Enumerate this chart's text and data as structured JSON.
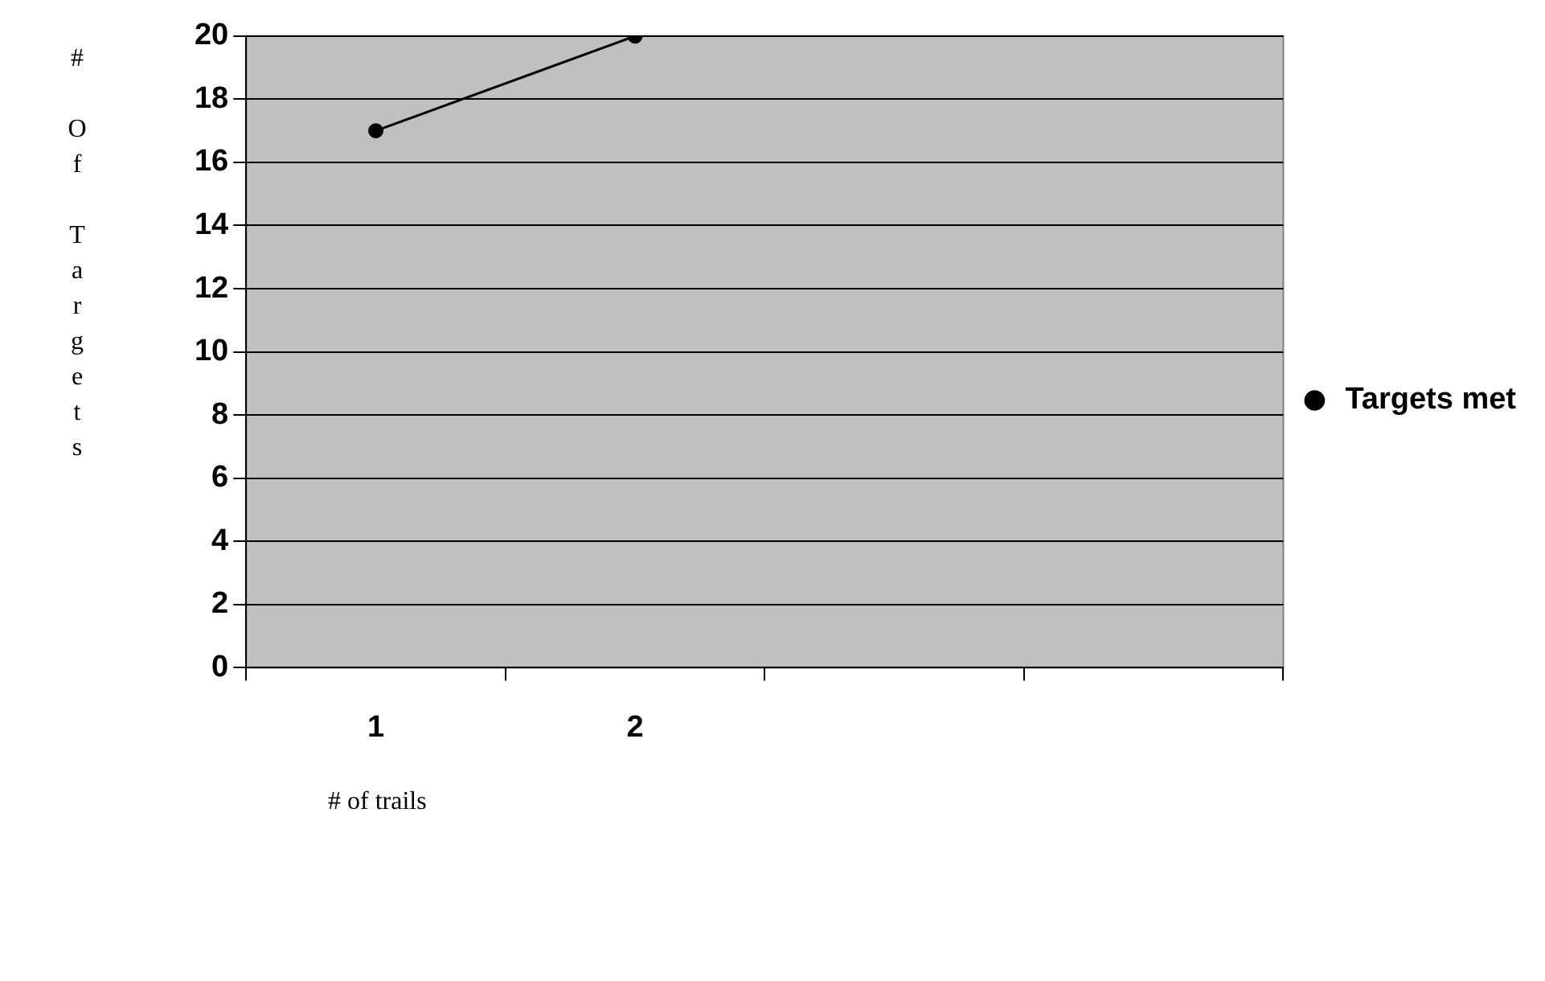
{
  "chart_data": {
    "type": "line",
    "xlabel": "# of trails",
    "ylabel": "# Of Targets",
    "categories": [
      "1",
      "2",
      null,
      null
    ],
    "series": [
      {
        "name": "Targets met",
        "color": "#000000",
        "values": [
          17,
          20,
          null,
          null
        ]
      }
    ],
    "ylim": [
      0,
      20
    ],
    "yticks": [
      0,
      2,
      4,
      6,
      8,
      10,
      12,
      14,
      16,
      18,
      20
    ],
    "grid": "y",
    "legend": "right",
    "marker": "circle",
    "line_style": "solid"
  }
}
